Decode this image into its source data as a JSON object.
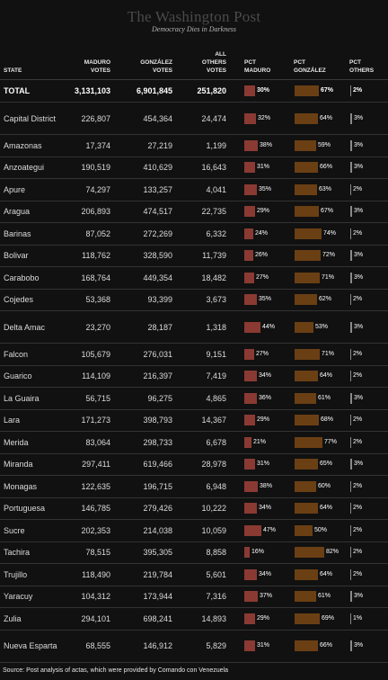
{
  "masthead": {
    "logo": "The Washington Post",
    "tagline": "Democracy Dies in Darkness"
  },
  "headers": {
    "state": "STATE",
    "maduro_votes": [
      "MADURO",
      "VOTES"
    ],
    "gonzalez_votes": [
      "GONZÁLEZ",
      "VOTES"
    ],
    "others_votes": [
      "ALL",
      "OTHERS",
      "VOTES"
    ],
    "pct_maduro": [
      "PCT",
      "MADURO"
    ],
    "pct_gonzalez": [
      "PCT",
      "GONZÁLEZ"
    ],
    "pct_others": [
      "PCT",
      "OTHERS"
    ]
  },
  "colors": {
    "maduro": "#8a3a33",
    "gonzalez": "#6a3f14",
    "others": "#8a8a8a",
    "background": "#111111"
  },
  "chart_data": {
    "type": "table",
    "columns": [
      "STATE",
      "MADURO VOTES",
      "GONZÁLEZ VOTES",
      "ALL OTHERS VOTES",
      "PCT MADURO",
      "PCT GONZÁLEZ",
      "PCT OTHERS"
    ],
    "rows": [
      {
        "state": "TOTAL",
        "maduro": "3,131,103",
        "gonzalez": "6,901,845",
        "others": "251,820",
        "pct_maduro": 30,
        "pct_gonzalez": 67,
        "pct_others": 2,
        "total": true
      },
      {
        "state": "Capital District",
        "maduro": "226,807",
        "gonzalez": "454,364",
        "others": "24,474",
        "pct_maduro": 32,
        "pct_gonzalez": 64,
        "pct_others": 3
      },
      {
        "state": "Amazonas",
        "maduro": "17,374",
        "gonzalez": "27,219",
        "others": "1,199",
        "pct_maduro": 38,
        "pct_gonzalez": 59,
        "pct_others": 3
      },
      {
        "state": "Anzoategui",
        "maduro": "190,519",
        "gonzalez": "410,629",
        "others": "16,643",
        "pct_maduro": 31,
        "pct_gonzalez": 66,
        "pct_others": 3
      },
      {
        "state": "Apure",
        "maduro": "74,297",
        "gonzalez": "133,257",
        "others": "4,041",
        "pct_maduro": 35,
        "pct_gonzalez": 63,
        "pct_others": 2
      },
      {
        "state": "Aragua",
        "maduro": "206,893",
        "gonzalez": "474,517",
        "others": "22,735",
        "pct_maduro": 29,
        "pct_gonzalez": 67,
        "pct_others": 3
      },
      {
        "state": "Barinas",
        "maduro": "87,052",
        "gonzalez": "272,269",
        "others": "6,332",
        "pct_maduro": 24,
        "pct_gonzalez": 74,
        "pct_others": 2
      },
      {
        "state": "Bolivar",
        "maduro": "118,762",
        "gonzalez": "328,590",
        "others": "11,739",
        "pct_maduro": 26,
        "pct_gonzalez": 72,
        "pct_others": 3
      },
      {
        "state": "Carabobo",
        "maduro": "168,764",
        "gonzalez": "449,354",
        "others": "18,482",
        "pct_maduro": 27,
        "pct_gonzalez": 71,
        "pct_others": 3
      },
      {
        "state": "Cojedes",
        "maduro": "53,368",
        "gonzalez": "93,399",
        "others": "3,673",
        "pct_maduro": 35,
        "pct_gonzalez": 62,
        "pct_others": 2
      },
      {
        "state": "Delta Amac",
        "maduro": "23,270",
        "gonzalez": "28,187",
        "others": "1,318",
        "pct_maduro": 44,
        "pct_gonzalez": 53,
        "pct_others": 3
      },
      {
        "state": "Falcon",
        "maduro": "105,679",
        "gonzalez": "276,031",
        "others": "9,151",
        "pct_maduro": 27,
        "pct_gonzalez": 71,
        "pct_others": 2
      },
      {
        "state": "Guarico",
        "maduro": "114,109",
        "gonzalez": "216,397",
        "others": "7,419",
        "pct_maduro": 34,
        "pct_gonzalez": 64,
        "pct_others": 2
      },
      {
        "state": "La Guaira",
        "maduro": "56,715",
        "gonzalez": "96,275",
        "others": "4,865",
        "pct_maduro": 36,
        "pct_gonzalez": 61,
        "pct_others": 3
      },
      {
        "state": "Lara",
        "maduro": "171,273",
        "gonzalez": "398,793",
        "others": "14,367",
        "pct_maduro": 29,
        "pct_gonzalez": 68,
        "pct_others": 2
      },
      {
        "state": "Merida",
        "maduro": "83,064",
        "gonzalez": "298,733",
        "others": "6,678",
        "pct_maduro": 21,
        "pct_gonzalez": 77,
        "pct_others": 2
      },
      {
        "state": "Miranda",
        "maduro": "297,411",
        "gonzalez": "619,466",
        "others": "28,978",
        "pct_maduro": 31,
        "pct_gonzalez": 65,
        "pct_others": 3
      },
      {
        "state": "Monagas",
        "maduro": "122,635",
        "gonzalez": "196,715",
        "others": "6,948",
        "pct_maduro": 38,
        "pct_gonzalez": 60,
        "pct_others": 2
      },
      {
        "state": "Portuguesa",
        "maduro": "146,785",
        "gonzalez": "279,426",
        "others": "10,222",
        "pct_maduro": 34,
        "pct_gonzalez": 64,
        "pct_others": 2
      },
      {
        "state": "Sucre",
        "maduro": "202,353",
        "gonzalez": "214,038",
        "others": "10,059",
        "pct_maduro": 47,
        "pct_gonzalez": 50,
        "pct_others": 2
      },
      {
        "state": "Tachira",
        "maduro": "78,515",
        "gonzalez": "395,305",
        "others": "8,858",
        "pct_maduro": 16,
        "pct_gonzalez": 82,
        "pct_others": 2
      },
      {
        "state": "Trujillo",
        "maduro": "118,490",
        "gonzalez": "219,784",
        "others": "5,601",
        "pct_maduro": 34,
        "pct_gonzalez": 64,
        "pct_others": 2
      },
      {
        "state": "Yaracuy",
        "maduro": "104,312",
        "gonzalez": "173,944",
        "others": "7,316",
        "pct_maduro": 37,
        "pct_gonzalez": 61,
        "pct_others": 3
      },
      {
        "state": "Zulia",
        "maduro": "294,101",
        "gonzalez": "698,241",
        "others": "14,893",
        "pct_maduro": 29,
        "pct_gonzalez": 69,
        "pct_others": 1
      },
      {
        "state": "Nueva Esparta",
        "maduro": "68,555",
        "gonzalez": "146,912",
        "others": "5,829",
        "pct_maduro": 31,
        "pct_gonzalez": 66,
        "pct_others": 3
      }
    ]
  },
  "source": "Source: Post analysis of actas, which were provided by Comando con Venezuela"
}
